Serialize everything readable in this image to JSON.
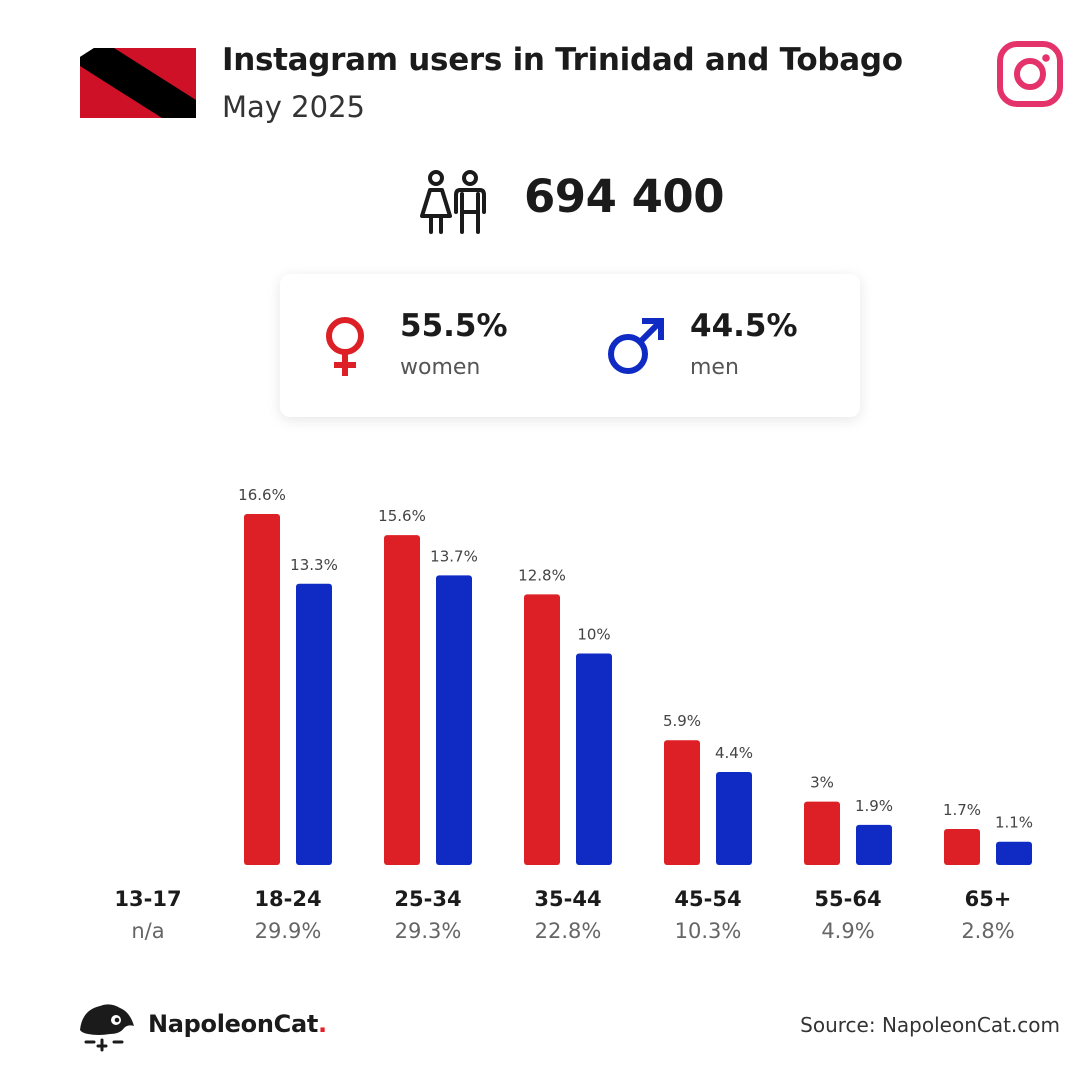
{
  "header": {
    "title": "Instagram users in Trinidad and Tobago",
    "subtitle": "May 2025",
    "flag_icon": "trinidad-and-tobago-flag-icon",
    "platform_icon": "instagram-icon"
  },
  "total": {
    "value": "694 400",
    "icon": "people-icon"
  },
  "gender": {
    "women": {
      "pct": "55.5%",
      "label": "women",
      "icon": "female-symbol-icon",
      "color": "#dd1f26"
    },
    "men": {
      "pct": "44.5%",
      "label": "men",
      "icon": "male-symbol-icon",
      "color": "#0f2bc4"
    }
  },
  "chart_data": {
    "type": "bar",
    "categories": [
      "13-17",
      "18-24",
      "25-34",
      "35-44",
      "45-54",
      "55-64",
      "65+"
    ],
    "category_totals": [
      "n/a",
      "29.9%",
      "29.3%",
      "22.8%",
      "10.3%",
      "4.9%",
      "2.8%"
    ],
    "series": [
      {
        "values": [
          null,
          16.6,
          15.6,
          12.8,
          5.9,
          3.0,
          1.7
        ],
        "labels": [
          "",
          "16.6%",
          "15.6%",
          "12.8%",
          "5.9%",
          "3%",
          "1.7%"
        ],
        "color": "#dd1f26"
      },
      {
        "values": [
          null,
          13.3,
          13.7,
          10.0,
          4.4,
          1.9,
          1.1
        ],
        "labels": [
          "",
          "13.3%",
          "13.7%",
          "10%",
          "4.4%",
          "1.9%",
          "1.1%"
        ],
        "color": "#0f2bc4"
      }
    ],
    "ylim": [
      0,
      16.6
    ],
    "grid": false,
    "legend": "none"
  },
  "footer": {
    "brand_name": "NapoleonCat",
    "brand_dot": ".",
    "brand_icon": "napoleoncat-logo-icon",
    "source": "Source: NapoleonCat.com"
  }
}
